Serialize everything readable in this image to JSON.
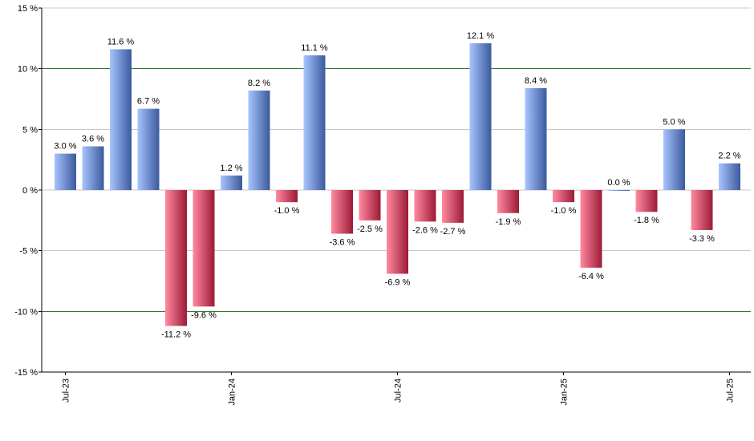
{
  "chart_data": {
    "type": "bar",
    "categories": [
      "Jul-23",
      "Aug-23",
      "Sep-23",
      "Oct-23",
      "Nov-23",
      "Dec-23",
      "Jan-24",
      "Feb-24",
      "Mar-24",
      "Apr-24",
      "May-24",
      "Jun-24",
      "Jul-24",
      "Aug-24",
      "Sep-24",
      "Oct-24",
      "Nov-24",
      "Dec-24",
      "Jan-25",
      "Feb-25",
      "Mar-25",
      "Apr-25",
      "May-25",
      "Jun-25",
      "Jul-25"
    ],
    "values": [
      3.0,
      3.6,
      11.6,
      6.7,
      -11.2,
      -9.6,
      1.2,
      8.2,
      -1.0,
      11.1,
      -3.6,
      -2.5,
      -6.9,
      -2.6,
      -2.7,
      12.1,
      -1.9,
      8.4,
      -1.0,
      -6.4,
      0.0,
      -1.8,
      5.0,
      -3.3,
      2.2
    ],
    "value_labels": [
      "3.0 %",
      "3.6 %",
      "11.6 %",
      "6.7 %",
      "-11.2 %",
      "-9.6 %",
      "1.2 %",
      "8.2 %",
      "-1.0 %",
      "11.1 %",
      "-3.6 %",
      "-2.5 %",
      "-6.9 %",
      "-2.6 %",
      "-2.7 %",
      "12.1 %",
      "-1.9 %",
      "8.4 %",
      "-1.0 %",
      "-6.4 %",
      "0.0 %",
      "-1.8 %",
      "5.0 %",
      "-3.3 %",
      "2.2 %"
    ],
    "x_tick_labels": [
      "Jul-23",
      "Jan-24",
      "Jul-24",
      "Jan-25",
      "Jul-25"
    ],
    "x_tick_categories": [
      "Jul-23",
      "Jan-24",
      "Jul-24",
      "Jan-25",
      "Jul-25"
    ],
    "y_ticks": [
      15,
      10,
      5,
      0,
      -5,
      -10,
      -15
    ],
    "y_tick_labels": [
      "15 %",
      "10 %",
      "5 %",
      "0 %",
      "-5 %",
      "-10 %",
      "-15 %"
    ],
    "ylim": [
      -15,
      15
    ],
    "highlight_gridlines": [
      10,
      -10
    ],
    "title": "",
    "xlabel": "",
    "ylabel": "",
    "grid": true,
    "legend": "none",
    "colors": {
      "positive_light": "#a8c4ff",
      "positive_dark": "#3a5a9e",
      "negative_light": "#ff8aa0",
      "negative_dark": "#9c1a36",
      "grid": "#c8c8c8",
      "highlight_grid": "#2e7d2e",
      "axis": "#000000"
    }
  }
}
